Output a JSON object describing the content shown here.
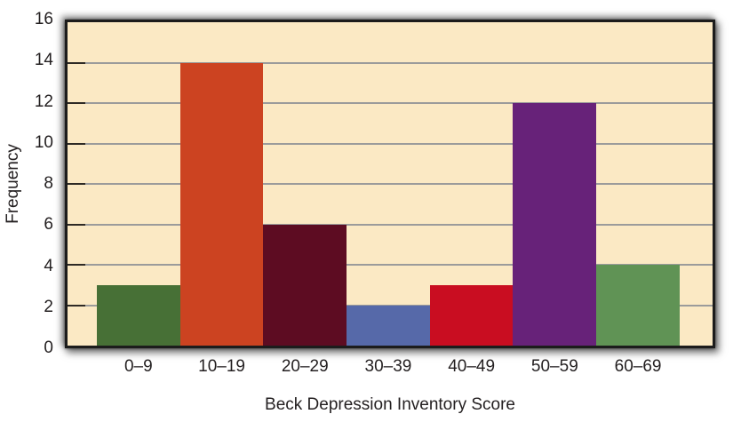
{
  "chart_data": {
    "type": "bar",
    "title": "",
    "xlabel": "Beck Depression Inventory Score",
    "ylabel": "Frequency",
    "categories": [
      "0–9",
      "10–19",
      "20–29",
      "30–39",
      "40–49",
      "50–59",
      "60–69"
    ],
    "values": [
      3,
      14,
      6,
      2,
      3,
      12,
      4
    ],
    "bar_colors": [
      "#477036",
      "#CC4321",
      "#5D0C22",
      "#5669A9",
      "#C90D21",
      "#672279",
      "#609355"
    ],
    "ylim": [
      0,
      16
    ],
    "yticks": [
      0,
      2,
      4,
      6,
      8,
      10,
      12,
      14,
      16
    ],
    "grid": "horizontal",
    "legend": "none",
    "colors": {
      "plot_background": "#FBE9C4",
      "grid_line": "#9B9B9B",
      "tick_mark": "#2E2A25",
      "plot_border": "#1C1C1C",
      "text": "#231F20",
      "page_background": "#FFFFFF"
    }
  }
}
